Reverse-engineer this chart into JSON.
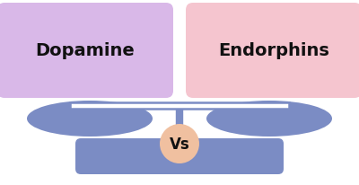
{
  "bg_color": "#ffffff",
  "left_box_color": "#d9b8e8",
  "right_box_color": "#f5c5cf",
  "pan_color": "#7b8cc4",
  "base_color": "#7b8cc4",
  "bar_color": "#7b8cc4",
  "vs_circle_color": "#f0c0a0",
  "left_label": "Dopamine",
  "right_label": "Endorphins",
  "vs_label": "Vs",
  "font_color": "#111111",
  "figsize": [
    4.0,
    2.07
  ],
  "dpi": 100,
  "outline_color": "#8899cc"
}
